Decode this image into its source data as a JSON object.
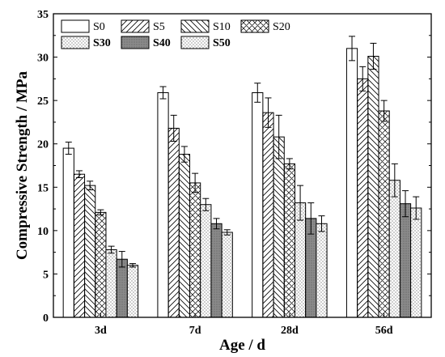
{
  "chart_data": {
    "type": "bar",
    "xlabel": "Age / d",
    "ylabel": "Compressive Strength / MPa",
    "categories": [
      "3d",
      "7d",
      "28d",
      "56d"
    ],
    "ylim": [
      0,
      35
    ],
    "yticks": [
      0,
      5,
      10,
      15,
      20,
      25,
      30,
      35
    ],
    "legend_position": "top-left",
    "grid": false,
    "error_bars": true,
    "series": [
      {
        "name": "S0",
        "label_bold": false,
        "pattern": "none",
        "values": [
          19.5,
          25.9,
          25.9,
          31.0
        ],
        "errors": [
          0.7,
          0.7,
          1.1,
          1.4
        ]
      },
      {
        "name": "S5",
        "label_bold": false,
        "pattern": "fwd",
        "values": [
          16.5,
          21.8,
          23.6,
          27.5
        ],
        "errors": [
          0.4,
          1.5,
          1.7,
          1.4
        ]
      },
      {
        "name": "S10",
        "label_bold": false,
        "pattern": "back",
        "values": [
          15.2,
          18.8,
          20.8,
          30.1
        ],
        "errors": [
          0.5,
          0.9,
          2.5,
          1.5
        ]
      },
      {
        "name": "S20",
        "label_bold": false,
        "pattern": "cross",
        "values": [
          12.1,
          15.5,
          17.7,
          23.8
        ],
        "errors": [
          0.3,
          1.1,
          0.6,
          1.2
        ]
      },
      {
        "name": "S30",
        "label_bold": true,
        "pattern": "dots",
        "values": [
          7.8,
          13.0,
          13.2,
          15.8
        ],
        "errors": [
          0.4,
          0.7,
          2.0,
          1.9
        ]
      },
      {
        "name": "S40",
        "label_bold": true,
        "pattern": "dark",
        "values": [
          6.7,
          10.8,
          11.4,
          13.1
        ],
        "errors": [
          0.9,
          0.6,
          1.8,
          1.5
        ]
      },
      {
        "name": "S50",
        "label_bold": true,
        "pattern": "dots",
        "values": [
          6.0,
          9.8,
          10.8,
          12.6
        ],
        "errors": [
          0.2,
          0.3,
          0.9,
          1.3
        ]
      }
    ]
  },
  "colors": {
    "bar_stroke": "#000000",
    "bar_fill": "#ffffff",
    "dark_fill": "#8a8a8a",
    "background": "#ffffff"
  }
}
